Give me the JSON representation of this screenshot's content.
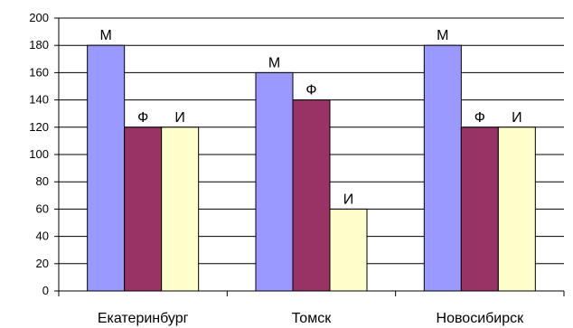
{
  "chart_data": {
    "type": "bar",
    "categories": [
      "Екатеринбург",
      "Томск",
      "Новосибирск"
    ],
    "series": [
      {
        "values": [
          180,
          160,
          180
        ],
        "color": "#9999ff",
        "label": "М"
      },
      {
        "values": [
          120,
          140,
          120
        ],
        "color": "#993366",
        "label": "Ф"
      },
      {
        "values": [
          120,
          60,
          120
        ],
        "color": "#ffffcc",
        "label": "И"
      }
    ],
    "yticks": [
      "0",
      "20",
      "40",
      "60",
      "80",
      "100",
      "120",
      "140",
      "160",
      "180",
      "200"
    ],
    "ylim": [
      0,
      200
    ],
    "grid": true,
    "legend": "none"
  }
}
